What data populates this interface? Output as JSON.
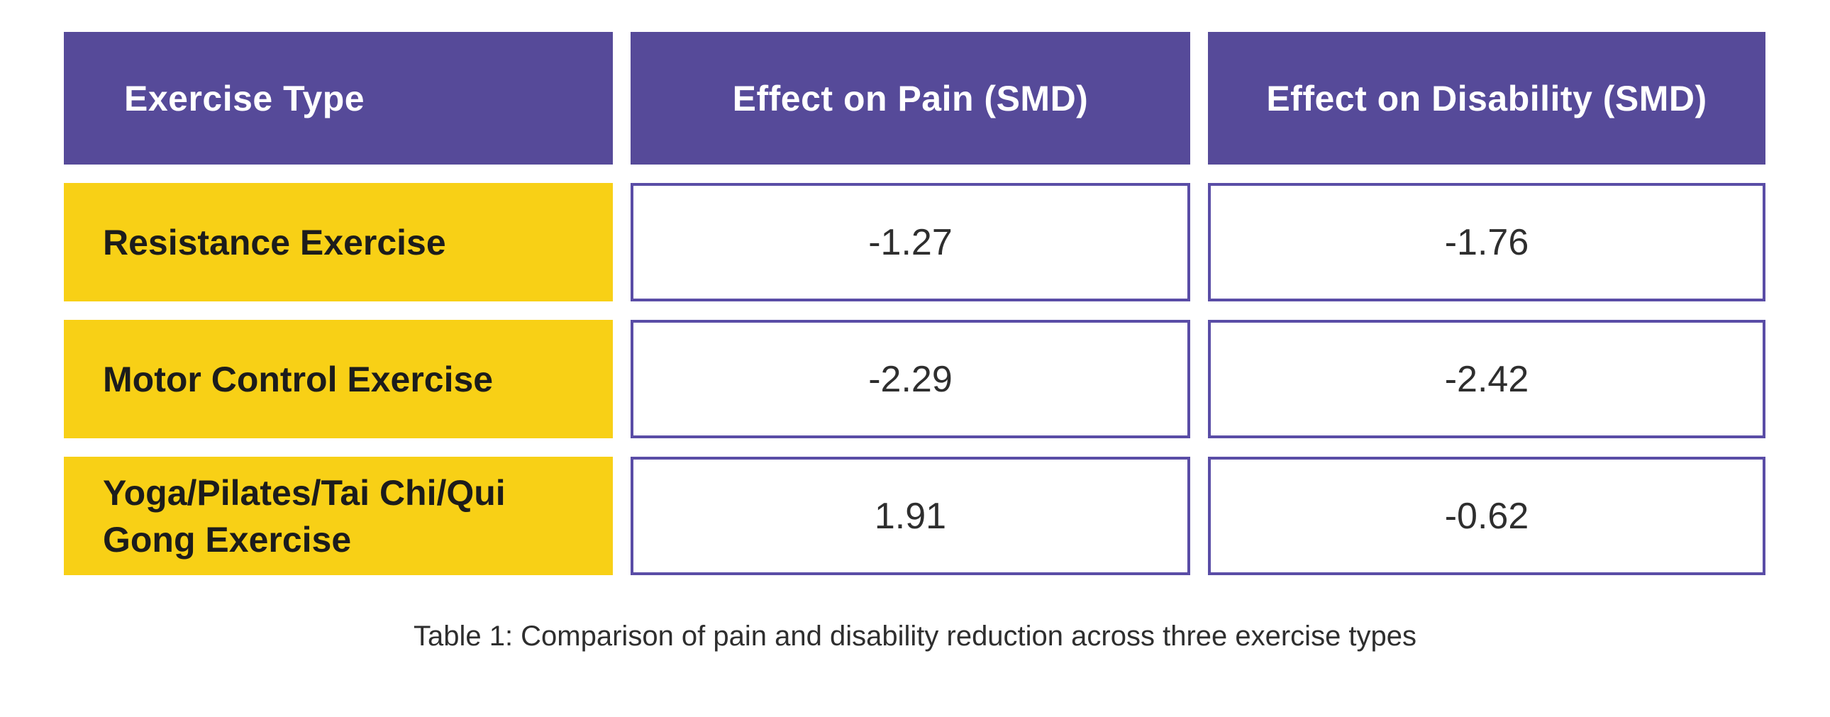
{
  "chart_data": {
    "type": "table",
    "columns": [
      "Exercise Type",
      "Effect on Pain (SMD)",
      "Effect on Disability (SMD)"
    ],
    "rows": [
      {
        "exercise": "Resistance Exercise",
        "pain": "-1.27",
        "disability": "-1.76"
      },
      {
        "exercise": "Motor Control Exercise",
        "pain": "-2.29",
        "disability": "-2.42"
      },
      {
        "exercise": "Yoga/Pilates/Tai Chi/Qui Gong Exercise",
        "pain": "1.91",
        "disability": "-0.62"
      }
    ],
    "values_numeric": [
      [
        -1.27,
        -1.76
      ],
      [
        -2.29,
        -2.42
      ],
      [
        1.91,
        -0.62
      ]
    ],
    "caption": "Table 1: Comparison of pain and disability reduction across three exercise types"
  },
  "colors": {
    "header_background": "#564a99",
    "header_text": "#ffffff",
    "row_label_background": "#f8d016",
    "row_label_text": "#1c1c1c",
    "value_cell_border": "#5a4da6",
    "value_cell_background": "#ffffff",
    "value_text": "#2e2e2e",
    "caption_text": "#2e2e2e",
    "page_background": "#ffffff"
  }
}
